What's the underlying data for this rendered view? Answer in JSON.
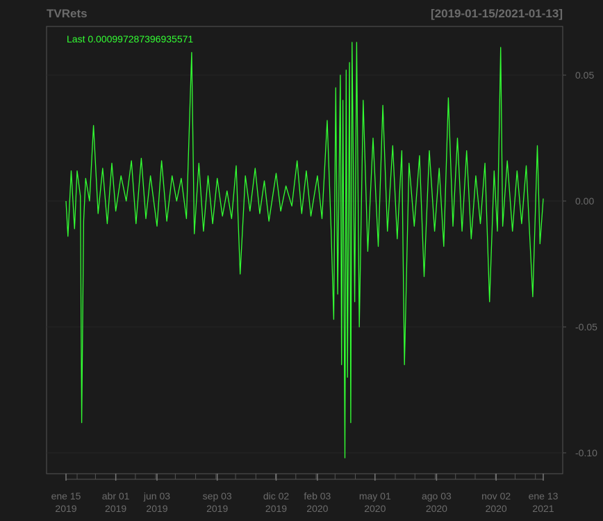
{
  "chart_data": {
    "type": "line",
    "title": "TVRets",
    "date_range_label": "[2019-01-15/2021-01-13]",
    "legend_label": "Last 0.000997287396935571",
    "last_value": 0.000997287396935571,
    "x_start": "2019-01-15",
    "x_end": "2021-01-13",
    "ylim": [
      -0.11,
      0.07
    ],
    "y_ticks": [
      {
        "value": 0.05,
        "label": "0.05"
      },
      {
        "value": 0.0,
        "label": "0.00"
      },
      {
        "value": -0.05,
        "label": "-0.05"
      },
      {
        "value": -0.1,
        "label": "-0.10"
      }
    ],
    "x_ticks": [
      {
        "date": "2019-01-15",
        "label1": "ene 15",
        "label2": "2019"
      },
      {
        "date": "2019-04-01",
        "label1": "abr 01",
        "label2": "2019"
      },
      {
        "date": "2019-06-03",
        "label1": "jun 03",
        "label2": "2019"
      },
      {
        "date": "2019-09-03",
        "label1": "sep 03",
        "label2": "2019"
      },
      {
        "date": "2019-12-02",
        "label1": "dic 02",
        "label2": "2019"
      },
      {
        "date": "2020-02-03",
        "label1": "feb 03",
        "label2": "2020"
      },
      {
        "date": "2020-05-01",
        "label1": "may 01",
        "label2": "2020"
      },
      {
        "date": "2020-08-03",
        "label1": "ago 03",
        "label2": "2020"
      },
      {
        "date": "2020-11-02",
        "label1": "nov 02",
        "label2": "2020"
      },
      {
        "date": "2021-01-13",
        "label1": "ene 13",
        "label2": "2021"
      }
    ],
    "series": [
      {
        "color": "#33ff33",
        "points": [
          [
            "2019-01-15",
            0.0
          ],
          [
            "2019-01-18",
            -0.014
          ],
          [
            "2019-01-23",
            0.012
          ],
          [
            "2019-01-28",
            -0.011
          ],
          [
            "2019-02-01",
            0.012
          ],
          [
            "2019-02-06",
            0.002
          ],
          [
            "2019-02-08",
            -0.088
          ],
          [
            "2019-02-11",
            -0.008
          ],
          [
            "2019-02-14",
            0.009
          ],
          [
            "2019-02-20",
            0.0
          ],
          [
            "2019-02-26",
            0.03
          ],
          [
            "2019-03-05",
            -0.005
          ],
          [
            "2019-03-12",
            0.013
          ],
          [
            "2019-03-19",
            -0.009
          ],
          [
            "2019-03-26",
            0.015
          ],
          [
            "2019-04-01",
            -0.004
          ],
          [
            "2019-04-09",
            0.01
          ],
          [
            "2019-04-17",
            0.0
          ],
          [
            "2019-04-25",
            0.016
          ],
          [
            "2019-05-02",
            -0.009
          ],
          [
            "2019-05-10",
            0.017
          ],
          [
            "2019-05-17",
            -0.007
          ],
          [
            "2019-05-24",
            0.01
          ],
          [
            "2019-06-03",
            -0.01
          ],
          [
            "2019-06-10",
            0.016
          ],
          [
            "2019-06-18",
            -0.008
          ],
          [
            "2019-06-26",
            0.01
          ],
          [
            "2019-07-03",
            0.0
          ],
          [
            "2019-07-10",
            0.009
          ],
          [
            "2019-07-18",
            -0.007
          ],
          [
            "2019-07-26",
            0.059
          ],
          [
            "2019-07-30",
            -0.013
          ],
          [
            "2019-08-06",
            0.015
          ],
          [
            "2019-08-13",
            -0.012
          ],
          [
            "2019-08-20",
            0.01
          ],
          [
            "2019-08-27",
            -0.009
          ],
          [
            "2019-09-03",
            0.009
          ],
          [
            "2019-09-11",
            -0.006
          ],
          [
            "2019-09-18",
            0.004
          ],
          [
            "2019-09-25",
            -0.007
          ],
          [
            "2019-10-02",
            0.014
          ],
          [
            "2019-10-08",
            -0.029
          ],
          [
            "2019-10-16",
            0.01
          ],
          [
            "2019-10-23",
            -0.004
          ],
          [
            "2019-10-31",
            0.013
          ],
          [
            "2019-11-07",
            -0.005
          ],
          [
            "2019-11-14",
            0.008
          ],
          [
            "2019-11-21",
            -0.008
          ],
          [
            "2019-12-02",
            0.011
          ],
          [
            "2019-12-09",
            -0.004
          ],
          [
            "2019-12-17",
            0.006
          ],
          [
            "2019-12-26",
            -0.002
          ],
          [
            "2020-01-03",
            0.016
          ],
          [
            "2020-01-10",
            -0.005
          ],
          [
            "2020-01-17",
            0.012
          ],
          [
            "2020-01-24",
            -0.006
          ],
          [
            "2020-02-03",
            0.01
          ],
          [
            "2020-02-10",
            -0.007
          ],
          [
            "2020-02-18",
            0.032
          ],
          [
            "2020-02-24",
            -0.012
          ],
          [
            "2020-02-28",
            -0.047
          ],
          [
            "2020-03-02",
            0.045
          ],
          [
            "2020-03-05",
            -0.037
          ],
          [
            "2020-03-09",
            0.05
          ],
          [
            "2020-03-11",
            -0.065
          ],
          [
            "2020-03-13",
            0.04
          ],
          [
            "2020-03-16",
            -0.102
          ],
          [
            "2020-03-18",
            0.052
          ],
          [
            "2020-03-20",
            -0.07
          ],
          [
            "2020-03-23",
            0.055
          ],
          [
            "2020-03-25",
            -0.088
          ],
          [
            "2020-03-27",
            0.063
          ],
          [
            "2020-03-31",
            -0.04
          ],
          [
            "2020-04-03",
            0.063
          ],
          [
            "2020-04-07",
            -0.05
          ],
          [
            "2020-04-13",
            0.04
          ],
          [
            "2020-04-20",
            -0.02
          ],
          [
            "2020-04-28",
            0.025
          ],
          [
            "2020-05-06",
            -0.018
          ],
          [
            "2020-05-13",
            0.038
          ],
          [
            "2020-05-20",
            -0.012
          ],
          [
            "2020-05-28",
            0.022
          ],
          [
            "2020-06-04",
            -0.015
          ],
          [
            "2020-06-11",
            0.02
          ],
          [
            "2020-06-15",
            -0.065
          ],
          [
            "2020-06-22",
            0.015
          ],
          [
            "2020-06-30",
            -0.01
          ],
          [
            "2020-07-08",
            0.018
          ],
          [
            "2020-07-15",
            -0.03
          ],
          [
            "2020-07-23",
            0.02
          ],
          [
            "2020-07-31",
            -0.012
          ],
          [
            "2020-08-07",
            0.013
          ],
          [
            "2020-08-14",
            -0.018
          ],
          [
            "2020-08-21",
            0.041
          ],
          [
            "2020-08-28",
            -0.01
          ],
          [
            "2020-09-04",
            0.025
          ],
          [
            "2020-09-11",
            -0.012
          ],
          [
            "2020-09-18",
            0.02
          ],
          [
            "2020-09-25",
            -0.015
          ],
          [
            "2020-10-02",
            0.01
          ],
          [
            "2020-10-09",
            -0.009
          ],
          [
            "2020-10-16",
            0.015
          ],
          [
            "2020-10-23",
            -0.04
          ],
          [
            "2020-10-30",
            0.012
          ],
          [
            "2020-11-04",
            -0.012
          ],
          [
            "2020-11-09",
            0.061
          ],
          [
            "2020-11-12",
            -0.01
          ],
          [
            "2020-11-19",
            0.016
          ],
          [
            "2020-11-27",
            -0.012
          ],
          [
            "2020-12-04",
            0.012
          ],
          [
            "2020-12-11",
            -0.009
          ],
          [
            "2020-12-18",
            0.014
          ],
          [
            "2020-12-28",
            -0.038
          ],
          [
            "2021-01-04",
            0.022
          ],
          [
            "2021-01-08",
            -0.017
          ],
          [
            "2021-01-13",
            0.000997287396935571
          ]
        ]
      }
    ]
  },
  "colors": {
    "background": "#1b1b1b",
    "line": "#33ff33",
    "axis": "#6b6b6b",
    "grid": "#262626"
  }
}
